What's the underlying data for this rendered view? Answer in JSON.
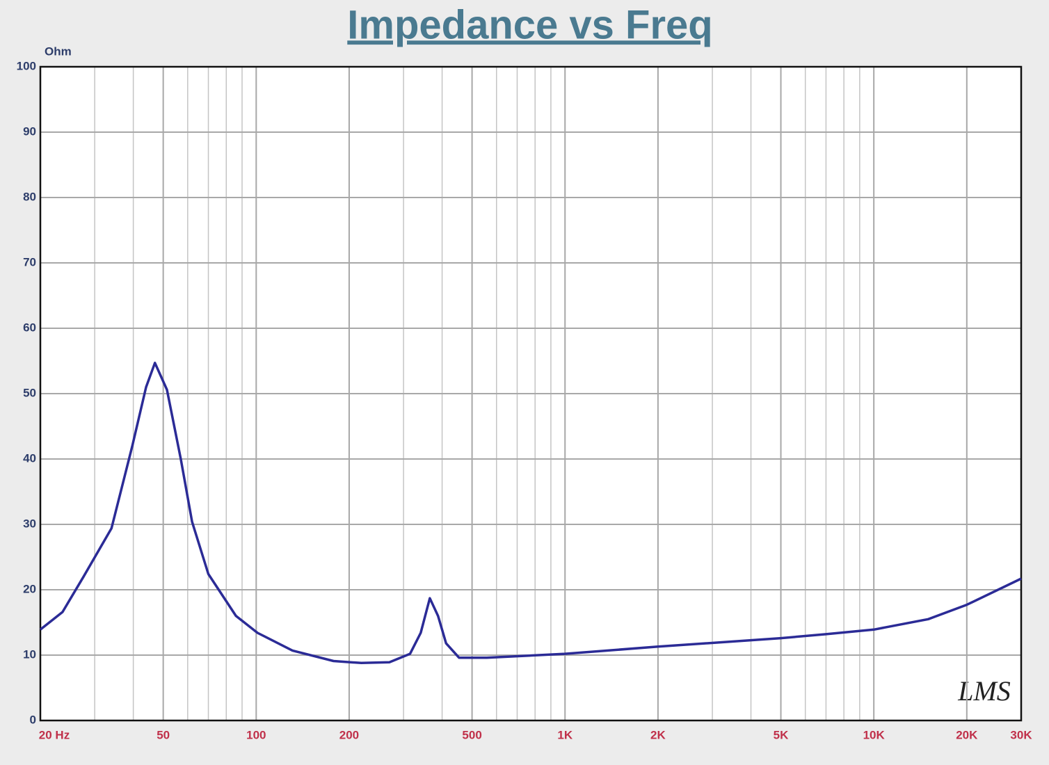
{
  "chart_data": {
    "type": "line",
    "title": "Impedance vs Freq",
    "ylabel": "Ohm",
    "watermark": "LMS",
    "xscale": "log",
    "grid": true,
    "minor_grid": true,
    "xlim": [
      20,
      30000
    ],
    "ylim": [
      0,
      100
    ],
    "xticks": [
      {
        "value": 20,
        "label": "20 Hz"
      },
      50,
      100,
      200,
      500,
      {
        "value": 1000,
        "label": "1K"
      },
      {
        "value": 2000,
        "label": "2K"
      },
      {
        "value": 5000,
        "label": "5K"
      },
      {
        "value": 10000,
        "label": "10K"
      },
      {
        "value": 20000,
        "label": "20K"
      },
      {
        "value": 30000,
        "label": "30K"
      }
    ],
    "yticks": [
      0,
      10,
      20,
      30,
      40,
      50,
      60,
      70,
      80,
      90,
      100
    ],
    "x": [
      20,
      23.6,
      27.6,
      34,
      39.7,
      44,
      47,
      51.4,
      57,
      62,
      70,
      86,
      101,
      131,
      178,
      219,
      270,
      315,
      341,
      365,
      388,
      412,
      454,
      558,
      1000,
      2000,
      5000,
      7000,
      10000,
      15000,
      20000,
      30000
    ],
    "series": [
      {
        "name": "Impedance",
        "color": "#2b2b96",
        "values": [
          13.9,
          16.6,
          22,
          29.4,
          42,
          51,
          54.7,
          50.6,
          40,
          30.4,
          22.4,
          16,
          13.4,
          10.7,
          9.1,
          8.8,
          8.9,
          10.2,
          13.4,
          18.7,
          16,
          11.8,
          9.6,
          9.6,
          10.2,
          11.3,
          12.6,
          13.2,
          13.9,
          15.5,
          17.7,
          21.7
        ]
      }
    ]
  }
}
